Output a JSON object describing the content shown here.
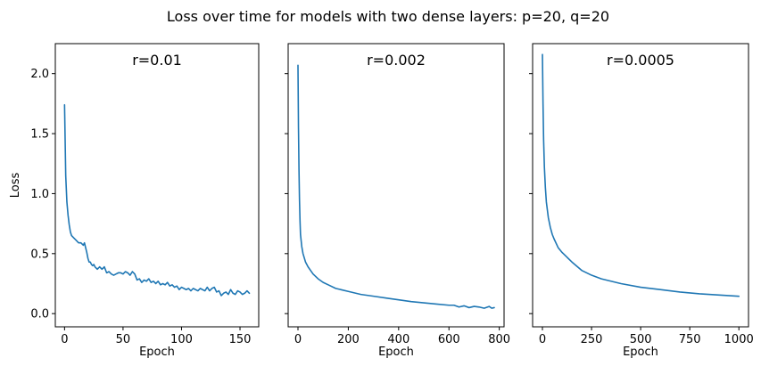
{
  "suptitle": "Loss over time for models with two dense layers: p=20, q=20",
  "colors": {
    "series": "#1f77b4"
  },
  "chart_data": [
    {
      "type": "line",
      "title": "r=0.01",
      "xlabel": "Epoch",
      "ylabel": "Loss",
      "xlim": [
        -7.9,
        166
      ],
      "ylim": [
        -0.11,
        2.25
      ],
      "xticks": [
        0,
        50,
        100,
        150
      ],
      "xtick_labels": [
        "0",
        "50",
        "100",
        "150"
      ],
      "yticks": [
        0.0,
        0.5,
        1.0,
        1.5,
        2.0
      ],
      "ytick_labels": [
        "0.0",
        "0.5",
        "1.0",
        "1.5",
        "2.0"
      ],
      "series": [
        {
          "x": [
            0,
            1,
            2,
            3,
            4,
            5,
            6,
            7,
            8,
            10,
            12,
            14,
            16,
            17,
            18,
            19,
            20,
            21,
            22,
            23,
            24,
            25,
            26,
            28,
            30,
            32,
            34,
            36,
            38,
            40,
            42,
            44,
            46,
            48,
            50,
            52,
            54,
            56,
            58,
            60,
            62,
            64,
            66,
            68,
            70,
            72,
            74,
            76,
            78,
            80,
            82,
            84,
            86,
            88,
            90,
            92,
            94,
            96,
            98,
            100,
            102,
            104,
            106,
            108,
            110,
            112,
            114,
            116,
            118,
            120,
            122,
            124,
            126,
            128,
            130,
            132,
            134,
            136,
            138,
            140,
            142,
            144,
            146,
            148,
            150,
            152,
            154,
            156,
            158
          ],
          "y": [
            1.74,
            1.15,
            0.93,
            0.82,
            0.74,
            0.68,
            0.65,
            0.64,
            0.63,
            0.61,
            0.59,
            0.59,
            0.57,
            0.59,
            0.55,
            0.51,
            0.46,
            0.43,
            0.43,
            0.41,
            0.4,
            0.41,
            0.39,
            0.37,
            0.39,
            0.37,
            0.39,
            0.34,
            0.35,
            0.33,
            0.32,
            0.33,
            0.34,
            0.34,
            0.33,
            0.35,
            0.34,
            0.32,
            0.35,
            0.33,
            0.28,
            0.29,
            0.26,
            0.28,
            0.27,
            0.29,
            0.26,
            0.27,
            0.25,
            0.27,
            0.24,
            0.25,
            0.24,
            0.26,
            0.23,
            0.24,
            0.22,
            0.23,
            0.2,
            0.22,
            0.21,
            0.2,
            0.21,
            0.19,
            0.21,
            0.2,
            0.19,
            0.21,
            0.2,
            0.19,
            0.22,
            0.19,
            0.21,
            0.22,
            0.18,
            0.19,
            0.15,
            0.17,
            0.18,
            0.16,
            0.2,
            0.17,
            0.16,
            0.19,
            0.18,
            0.16,
            0.17,
            0.19,
            0.17
          ]
        }
      ]
    },
    {
      "type": "line",
      "title": "r=0.002",
      "xlabel": "Epoch",
      "ylabel": "",
      "xlim": [
        -39,
        819
      ],
      "ylim": [
        -0.11,
        2.25
      ],
      "xticks": [
        0,
        200,
        400,
        600,
        800
      ],
      "xtick_labels": [
        "0",
        "200",
        "400",
        "600",
        "800"
      ],
      "yticks": [
        0.0,
        0.5,
        1.0,
        1.5,
        2.0
      ],
      "ytick_labels": [],
      "series": [
        {
          "x": [
            0,
            2,
            4,
            6,
            8,
            10,
            15,
            20,
            30,
            40,
            50,
            60,
            80,
            100,
            120,
            150,
            200,
            250,
            300,
            350,
            400,
            450,
            500,
            550,
            600,
            620,
            640,
            660,
            680,
            700,
            720,
            740,
            760,
            770,
            780
          ],
          "y": [
            2.07,
            1.55,
            1.2,
            0.95,
            0.78,
            0.66,
            0.56,
            0.5,
            0.43,
            0.39,
            0.36,
            0.33,
            0.29,
            0.26,
            0.24,
            0.21,
            0.185,
            0.16,
            0.145,
            0.13,
            0.115,
            0.1,
            0.09,
            0.08,
            0.07,
            0.07,
            0.055,
            0.065,
            0.05,
            0.06,
            0.055,
            0.045,
            0.06,
            0.045,
            0.05
          ]
        }
      ]
    },
    {
      "type": "line",
      "title": "r=0.0005",
      "xlabel": "Epoch",
      "ylabel": "",
      "xlim": [
        -50,
        1049
      ],
      "ylim": [
        -0.11,
        2.25
      ],
      "xticks": [
        0,
        250,
        500,
        750,
        1000
      ],
      "xtick_labels": [
        "0",
        "250",
        "500",
        "750",
        "1000"
      ],
      "yticks": [
        0.0,
        0.5,
        1.0,
        1.5,
        2.0
      ],
      "ytick_labels": [],
      "series": [
        {
          "x": [
            0,
            3,
            6,
            10,
            15,
            20,
            30,
            40,
            50,
            60,
            80,
            100,
            125,
            150,
            200,
            250,
            300,
            400,
            500,
            600,
            700,
            800,
            900,
            1000
          ],
          "y": [
            2.16,
            1.75,
            1.45,
            1.22,
            1.05,
            0.93,
            0.8,
            0.72,
            0.66,
            0.62,
            0.55,
            0.51,
            0.47,
            0.43,
            0.36,
            0.32,
            0.29,
            0.25,
            0.22,
            0.2,
            0.18,
            0.165,
            0.155,
            0.145
          ]
        }
      ]
    }
  ]
}
